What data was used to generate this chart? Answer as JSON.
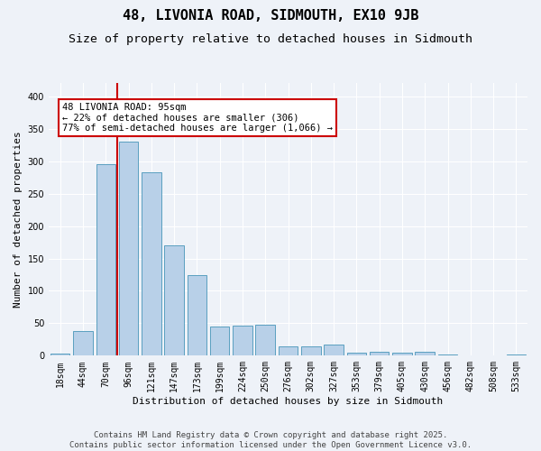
{
  "title": "48, LIVONIA ROAD, SIDMOUTH, EX10 9JB",
  "subtitle": "Size of property relative to detached houses in Sidmouth",
  "xlabel": "Distribution of detached houses by size in Sidmouth",
  "ylabel": "Number of detached properties",
  "bar_labels": [
    "18sqm",
    "44sqm",
    "70sqm",
    "96sqm",
    "121sqm",
    "147sqm",
    "173sqm",
    "199sqm",
    "224sqm",
    "250sqm",
    "276sqm",
    "302sqm",
    "327sqm",
    "353sqm",
    "379sqm",
    "405sqm",
    "430sqm",
    "456sqm",
    "482sqm",
    "508sqm",
    "533sqm"
  ],
  "bar_values": [
    3,
    38,
    296,
    330,
    283,
    170,
    124,
    45,
    46,
    48,
    15,
    15,
    17,
    5,
    6,
    5,
    6,
    2,
    1,
    0,
    2
  ],
  "bar_color": "#b8d0e8",
  "bar_edge_color": "#5a9fc0",
  "vline_x_index": 3,
  "vline_color": "#cc0000",
  "annotation_text": "48 LIVONIA ROAD: 95sqm\n← 22% of detached houses are smaller (306)\n77% of semi-detached houses are larger (1,066) →",
  "annotation_box_facecolor": "#ffffff",
  "annotation_box_edgecolor": "#cc0000",
  "ylim": [
    0,
    420
  ],
  "yticks": [
    0,
    50,
    100,
    150,
    200,
    250,
    300,
    350,
    400
  ],
  "bg_color": "#eef2f8",
  "footer_text": "Contains HM Land Registry data © Crown copyright and database right 2025.\nContains public sector information licensed under the Open Government Licence v3.0.",
  "title_fontsize": 11,
  "subtitle_fontsize": 9.5,
  "axis_label_fontsize": 8,
  "tick_fontsize": 7,
  "annotation_fontsize": 7.5,
  "footer_fontsize": 6.5
}
